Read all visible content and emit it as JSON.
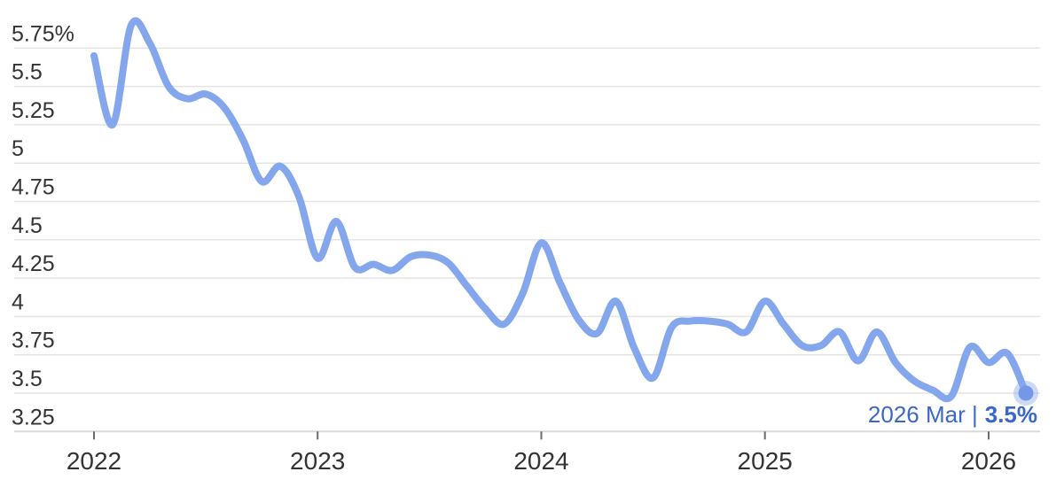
{
  "chart_data": {
    "type": "line",
    "title": "",
    "unit": "%",
    "x_description": "monthly points from Jan 2022 to Mar 2026",
    "values": [
      5.7,
      5.25,
      5.9,
      5.78,
      5.5,
      5.42,
      5.45,
      5.36,
      5.15,
      4.88,
      4.98,
      4.78,
      4.38,
      4.62,
      4.32,
      4.34,
      4.3,
      4.39,
      4.4,
      4.35,
      4.2,
      4.05,
      3.95,
      4.15,
      4.48,
      4.22,
      3.98,
      3.89,
      4.1,
      3.79,
      3.6,
      3.93,
      3.97,
      3.97,
      3.95,
      3.9,
      4.1,
      3.95,
      3.81,
      3.81,
      3.9,
      3.71,
      3.9,
      3.7,
      3.58,
      3.52,
      3.48,
      3.8,
      3.7,
      3.76,
      3.5
    ],
    "y_axis": {
      "min": 3.25,
      "max": 5.75,
      "ticks": [
        {
          "label": "5.75%",
          "value": 5.75
        },
        {
          "label": "5.5",
          "value": 5.5
        },
        {
          "label": "5.25",
          "value": 5.25
        },
        {
          "label": "5",
          "value": 5
        },
        {
          "label": "4.75",
          "value": 4.75
        },
        {
          "label": "4.5",
          "value": 4.5
        },
        {
          "label": "4.25",
          "value": 4.25
        },
        {
          "label": "4",
          "value": 4
        },
        {
          "label": "3.75",
          "value": 3.75
        },
        {
          "label": "3.5",
          "value": 3.5
        },
        {
          "label": "3.25",
          "value": 3.25
        }
      ]
    },
    "x_axis": {
      "ticks": [
        {
          "label": "2022",
          "month_index": 0
        },
        {
          "label": "2023",
          "month_index": 12
        },
        {
          "label": "2024",
          "month_index": 24
        },
        {
          "label": "2025",
          "month_index": 36
        },
        {
          "label": "2026",
          "month_index": 48
        }
      ]
    },
    "annotation": {
      "date_label": "2026 Mar |",
      "value_label": "3.5%"
    },
    "endpoint": {
      "month_index": 50,
      "value": 3.5
    },
    "grid": true,
    "legend": false,
    "colors": {
      "line": "#84a6ec",
      "endpoint": "#7398e8",
      "endpoint_halo": "rgba(135,167,236,0.42)",
      "annotation": "#3a67c8",
      "gridline": "#e4e4e4",
      "axis_line": "#d9d9d9",
      "tick": "#6b6b6b",
      "axis_text": "#333333"
    }
  }
}
